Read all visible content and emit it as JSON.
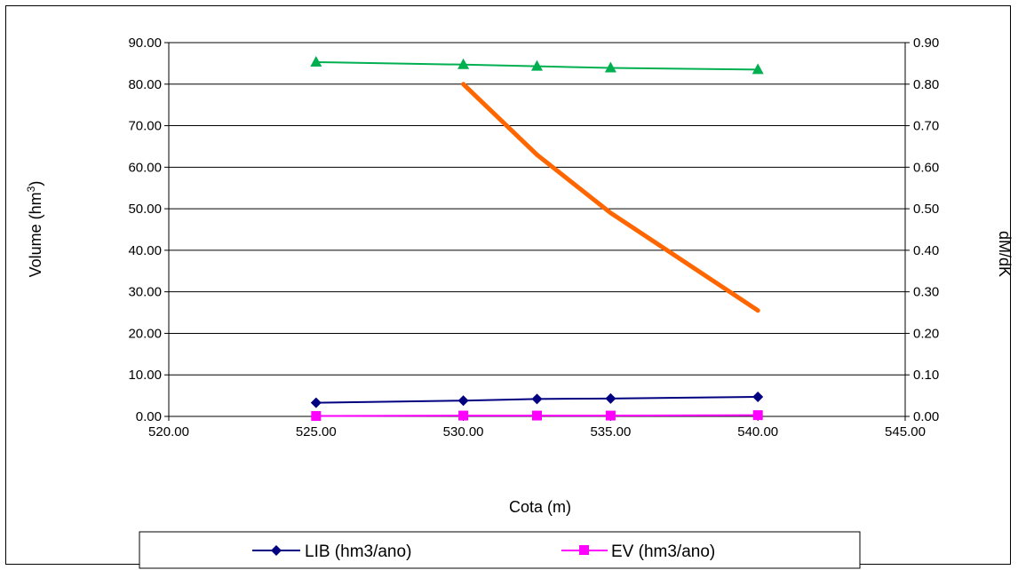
{
  "chart_data": {
    "type": "line",
    "title": "",
    "xlabel": "Cota (m)",
    "ylabel": "Volume (hm³)",
    "ylabel_main": "Volume  (hm",
    "ylabel_sup": "3",
    "ylabel_close": ")",
    "y2label": "dM/dK",
    "xlim": [
      520,
      545
    ],
    "ylim": [
      0,
      90
    ],
    "y2lim": [
      0,
      0.9
    ],
    "x_ticks": [
      "520.00",
      "525.00",
      "530.00",
      "535.00",
      "540.00",
      "545.00"
    ],
    "y_ticks": [
      "0.00",
      "10.00",
      "20.00",
      "30.00",
      "40.00",
      "50.00",
      "60.00",
      "70.00",
      "80.00",
      "90.00"
    ],
    "y2_ticks": [
      "0.00",
      "0.10",
      "0.20",
      "0.30",
      "0.40",
      "0.50",
      "0.60",
      "0.70",
      "0.80",
      "0.90"
    ],
    "grid": "horizontal",
    "legend_position": "bottom",
    "series": [
      {
        "name": "LIB (hm3/ano)",
        "axis": "left",
        "color": "#000080",
        "marker": "diamond",
        "in_legend": true,
        "x": [
          525,
          530,
          532.5,
          535,
          540
        ],
        "y": [
          3.3,
          3.8,
          4.2,
          4.3,
          4.7
        ]
      },
      {
        "name": "EV (hm3/ano)",
        "axis": "left",
        "color": "#ff00ff",
        "marker": "square",
        "in_legend": true,
        "x": [
          525,
          530,
          532.5,
          535,
          540
        ],
        "y": [
          0.1,
          0.2,
          0.2,
          0.2,
          0.3
        ]
      },
      {
        "axis": "right",
        "color": "#00b050",
        "marker": "triangle",
        "in_legend": false,
        "x": [
          525,
          530,
          532.5,
          535,
          540
        ],
        "y": [
          0.853,
          0.847,
          0.843,
          0.839,
          0.835
        ]
      },
      {
        "axis": "right",
        "color": "#ff6600",
        "marker": "none",
        "in_legend": false,
        "x": [
          530,
          532.5,
          535,
          540
        ],
        "y": [
          0.8,
          0.63,
          0.49,
          0.255
        ]
      }
    ]
  }
}
